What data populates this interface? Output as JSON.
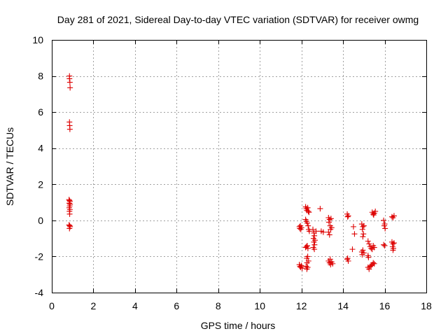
{
  "chart_data": {
    "type": "scatter",
    "title": "Day 281 of 2021, Sidereal Day-to-day VTEC variation (SDTVAR) for receiver owmg",
    "xlabel": "GPS time / hours",
    "ylabel": "SDTVAR / TECUs",
    "xlim": [
      0,
      18
    ],
    "ylim": [
      -4,
      10
    ],
    "xticks": [
      "0",
      "2",
      "4",
      "6",
      "8",
      "10",
      "12",
      "14",
      "16",
      "18"
    ],
    "yticks": [
      "-4",
      "-2",
      "0",
      "2",
      "4",
      "6",
      "8",
      "10"
    ],
    "grid": true,
    "marker": "+",
    "color": "#dd0000",
    "series": [
      {
        "name": "SDTVAR",
        "points": [
          [
            0.85,
            8.0
          ],
          [
            0.85,
            7.85
          ],
          [
            0.87,
            7.65
          ],
          [
            0.88,
            7.35
          ],
          [
            0.85,
            5.45
          ],
          [
            0.86,
            5.25
          ],
          [
            0.87,
            5.05
          ],
          [
            0.83,
            1.15
          ],
          [
            0.85,
            1.1
          ],
          [
            0.87,
            1.05
          ],
          [
            0.84,
            0.95
          ],
          [
            0.88,
            0.9
          ],
          [
            0.86,
            0.8
          ],
          [
            0.84,
            0.7
          ],
          [
            0.87,
            0.6
          ],
          [
            0.85,
            0.5
          ],
          [
            0.86,
            0.35
          ],
          [
            0.83,
            -0.25
          ],
          [
            0.86,
            -0.3
          ],
          [
            0.88,
            -0.35
          ],
          [
            0.85,
            -0.45
          ],
          [
            11.9,
            -0.35
          ],
          [
            11.92,
            -0.45
          ],
          [
            11.95,
            -0.3
          ],
          [
            11.97,
            -0.5
          ],
          [
            12.0,
            -0.4
          ],
          [
            11.9,
            -2.45
          ],
          [
            11.93,
            -2.55
          ],
          [
            11.96,
            -2.6
          ],
          [
            12.0,
            -2.5
          ],
          [
            12.03,
            -2.65
          ],
          [
            12.2,
            0.75
          ],
          [
            12.23,
            0.65
          ],
          [
            12.26,
            0.55
          ],
          [
            12.3,
            0.7
          ],
          [
            12.33,
            0.5
          ],
          [
            12.36,
            0.45
          ],
          [
            12.2,
            0.05
          ],
          [
            12.24,
            -0.05
          ],
          [
            12.28,
            -0.15
          ],
          [
            12.32,
            -0.3
          ],
          [
            12.35,
            -0.5
          ],
          [
            12.38,
            -0.6
          ],
          [
            12.2,
            -1.5
          ],
          [
            12.24,
            -1.45
          ],
          [
            12.28,
            -1.4
          ],
          [
            12.31,
            -1.55
          ],
          [
            12.25,
            -2.1
          ],
          [
            12.3,
            -2.0
          ],
          [
            12.34,
            -2.25
          ],
          [
            12.27,
            -2.35
          ],
          [
            12.22,
            -2.55
          ],
          [
            12.26,
            -2.7
          ],
          [
            12.3,
            -2.6
          ],
          [
            12.55,
            -0.5
          ],
          [
            12.6,
            -0.7
          ],
          [
            12.62,
            -0.85
          ],
          [
            12.58,
            -1.0
          ],
          [
            12.65,
            -1.1
          ],
          [
            12.6,
            -1.2
          ],
          [
            12.63,
            -1.35
          ],
          [
            12.57,
            -1.5
          ],
          [
            12.62,
            -1.6
          ],
          [
            12.7,
            -0.6
          ],
          [
            12.9,
            0.65
          ],
          [
            12.95,
            -0.6
          ],
          [
            13.05,
            -0.65
          ],
          [
            13.3,
            0.15
          ],
          [
            13.35,
            0.05
          ],
          [
            13.32,
            -0.1
          ],
          [
            13.38,
            -0.3
          ],
          [
            13.4,
            -0.5
          ],
          [
            13.3,
            -0.65
          ],
          [
            13.35,
            -0.8
          ],
          [
            13.42,
            0.1
          ],
          [
            13.45,
            -0.4
          ],
          [
            13.3,
            -2.25
          ],
          [
            13.35,
            -2.35
          ],
          [
            13.4,
            -2.45
          ],
          [
            13.45,
            -2.3
          ],
          [
            13.38,
            -2.15
          ],
          [
            13.5,
            -2.4
          ],
          [
            14.2,
            0.35
          ],
          [
            14.25,
            0.25
          ],
          [
            14.22,
            0.2
          ],
          [
            14.2,
            -2.15
          ],
          [
            14.25,
            -2.25
          ],
          [
            14.22,
            -2.1
          ],
          [
            14.5,
            -0.35
          ],
          [
            14.55,
            -0.75
          ],
          [
            14.45,
            -1.6
          ],
          [
            14.9,
            -0.2
          ],
          [
            14.95,
            -0.35
          ],
          [
            15.0,
            -0.3
          ],
          [
            14.93,
            -0.5
          ],
          [
            14.98,
            -0.75
          ],
          [
            14.95,
            -0.9
          ],
          [
            14.9,
            -1.75
          ],
          [
            14.95,
            -1.65
          ],
          [
            15.0,
            -1.8
          ],
          [
            14.92,
            -1.9
          ],
          [
            15.2,
            -1.15
          ],
          [
            15.25,
            -1.3
          ],
          [
            15.3,
            -1.45
          ],
          [
            15.35,
            -1.55
          ],
          [
            15.4,
            -1.6
          ],
          [
            15.45,
            -1.4
          ],
          [
            15.5,
            -1.5
          ],
          [
            15.2,
            -2.6
          ],
          [
            15.25,
            -2.7
          ],
          [
            15.3,
            -2.55
          ],
          [
            15.35,
            -2.5
          ],
          [
            15.4,
            -2.45
          ],
          [
            15.45,
            -2.35
          ],
          [
            15.5,
            -2.4
          ],
          [
            15.4,
            0.45
          ],
          [
            15.45,
            0.35
          ],
          [
            15.5,
            0.4
          ],
          [
            15.55,
            0.5
          ],
          [
            15.47,
            0.3
          ],
          [
            15.2,
            -1.95
          ],
          [
            15.22,
            -2.05
          ],
          [
            15.95,
            0.0
          ],
          [
            16.0,
            -0.2
          ],
          [
            16.02,
            -0.45
          ],
          [
            15.98,
            -0.3
          ],
          [
            15.95,
            -1.35
          ],
          [
            16.0,
            -1.4
          ],
          [
            16.35,
            0.2
          ],
          [
            16.4,
            0.15
          ],
          [
            16.45,
            0.25
          ],
          [
            16.35,
            -1.2
          ],
          [
            16.4,
            -1.3
          ],
          [
            16.45,
            -1.25
          ],
          [
            16.38,
            -1.45
          ],
          [
            16.42,
            -1.55
          ],
          [
            16.4,
            -1.65
          ]
        ]
      }
    ]
  }
}
